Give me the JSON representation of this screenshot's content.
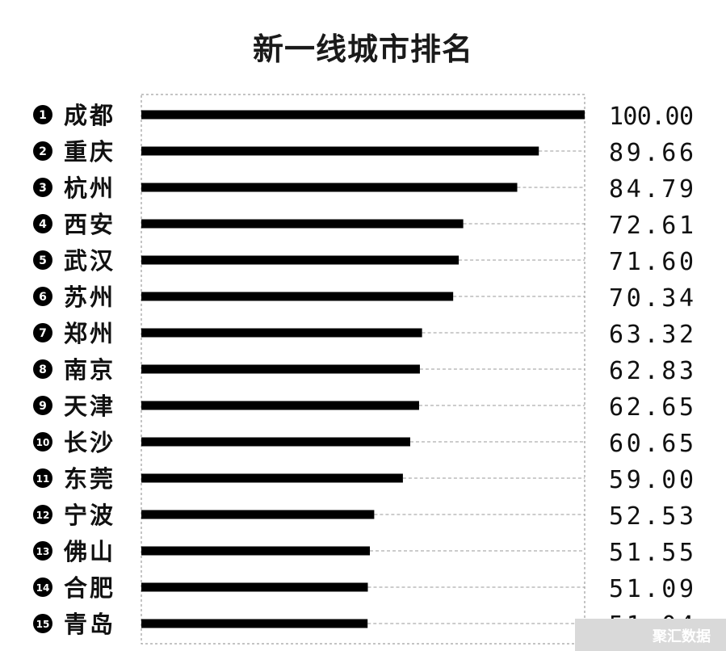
{
  "chart_data": {
    "type": "bar",
    "orientation": "horizontal",
    "title": "新一线城市排名",
    "xlim": [
      0,
      100
    ],
    "grid": false,
    "ranks": [
      "1",
      "2",
      "3",
      "4",
      "5",
      "6",
      "7",
      "8",
      "9",
      "10",
      "11",
      "12",
      "13",
      "14",
      "15"
    ],
    "categories": [
      "成都",
      "重庆",
      "杭州",
      "西安",
      "武汉",
      "苏州",
      "郑州",
      "南京",
      "天津",
      "长沙",
      "东莞",
      "宁波",
      "佛山",
      "合肥",
      "青岛"
    ],
    "values": [
      100.0,
      89.66,
      84.79,
      72.61,
      71.6,
      70.34,
      63.32,
      62.83,
      62.65,
      60.65,
      59.0,
      52.53,
      51.55,
      51.09,
      51.04
    ],
    "value_labels": [
      "100.00",
      "89.66",
      "84.79",
      "72.61",
      "71.60",
      "70.34",
      "63.32",
      "62.83",
      "62.65",
      "60.65",
      "59.00",
      "52.53",
      "51.55",
      "51.09",
      "51.04"
    ],
    "bar_color": "#000000",
    "guide_color": "#9a9a9a"
  },
  "watermark": "聚汇数据"
}
